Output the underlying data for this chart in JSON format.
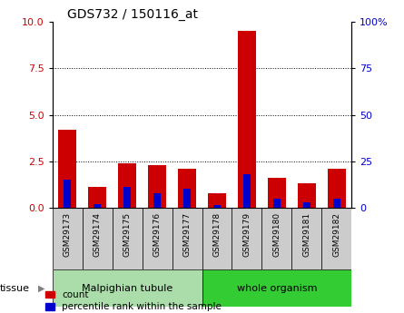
{
  "title": "GDS732 / 150116_at",
  "samples": [
    "GSM29173",
    "GSM29174",
    "GSM29175",
    "GSM29176",
    "GSM29177",
    "GSM29178",
    "GSM29179",
    "GSM29180",
    "GSM29181",
    "GSM29182"
  ],
  "count_values": [
    4.2,
    1.1,
    2.4,
    2.3,
    2.1,
    0.8,
    9.5,
    1.6,
    1.3,
    2.1
  ],
  "percentile_values": [
    15.0,
    2.0,
    11.0,
    8.0,
    10.0,
    1.5,
    18.0,
    5.0,
    3.0,
    5.0
  ],
  "ylim_left": [
    0,
    10
  ],
  "ylim_right": [
    0,
    100
  ],
  "yticks_left": [
    0,
    2.5,
    5.0,
    7.5,
    10
  ],
  "yticks_right": [
    0,
    25,
    50,
    75,
    100
  ],
  "tissue_groups": [
    {
      "label": "Malpighian tubule",
      "start": 0,
      "end": 4,
      "color": "#aaddaa"
    },
    {
      "label": "whole organism",
      "start": 5,
      "end": 9,
      "color": "#33cc33"
    }
  ],
  "count_color": "#cc0000",
  "percentile_color": "#0000cc",
  "bg_color": "#cccccc",
  "legend_count_label": "count",
  "legend_pct_label": "percentile rank within the sample",
  "tissue_label": "tissue"
}
